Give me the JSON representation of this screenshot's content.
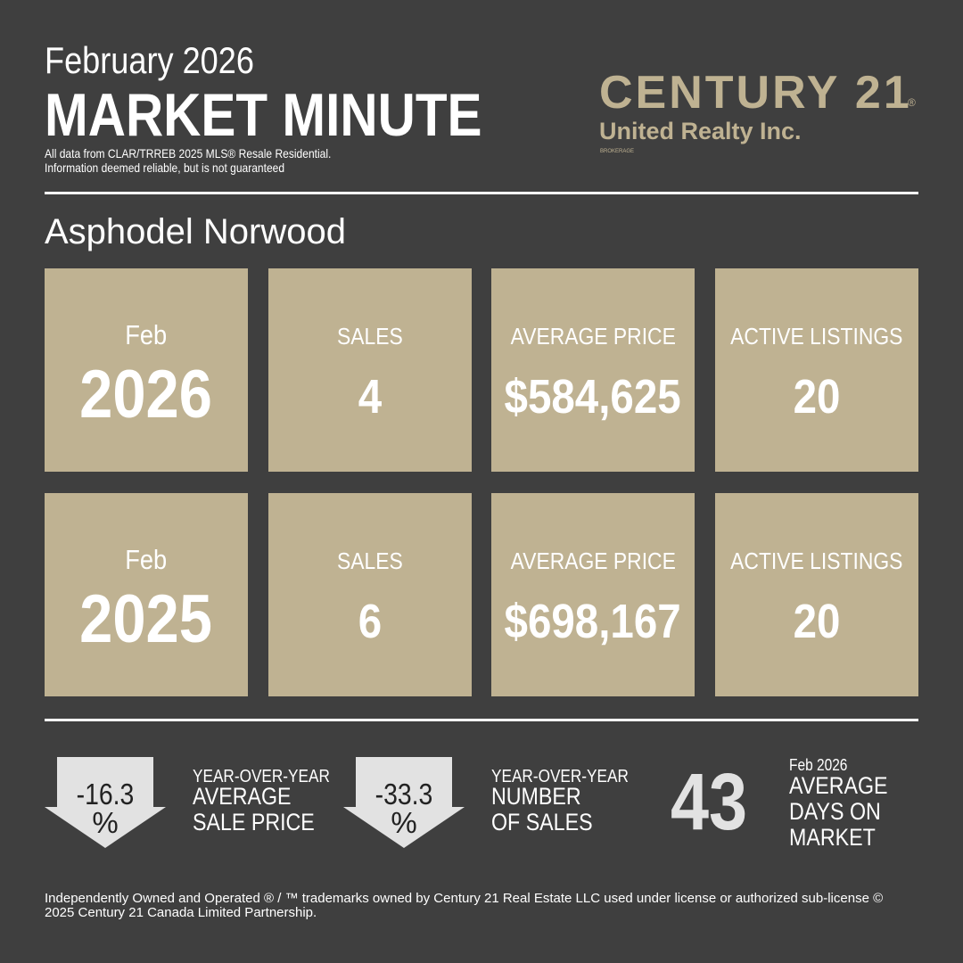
{
  "header": {
    "month_title": "February 2026",
    "title": "MARKET MINUTE",
    "note": [
      "All data from CLAR/TRREB 2025 MLS® Resale  Residential.",
      "Information deemed reliable, but is not guaranteed"
    ]
  },
  "logo": {
    "brand": "CENTURY 21",
    "mark": "®",
    "office": "United Realty Inc.",
    "tag": "BROKERAGE"
  },
  "region": "Asphodel Norwood",
  "rows": [
    {
      "month": "Feb",
      "year": "2026",
      "cards": [
        {
          "label": "SALES",
          "value": "4"
        },
        {
          "label": "AVERAGE PRICE",
          "value": "$584,625"
        },
        {
          "label": "ACTIVE LISTINGS",
          "value": "20"
        }
      ]
    },
    {
      "month": "Feb",
      "year": "2025",
      "cards": [
        {
          "label": "SALES",
          "value": "6"
        },
        {
          "label": "AVERAGE PRICE",
          "value": "$698,167"
        },
        {
          "label": "ACTIVE LISTINGS",
          "value": "20"
        }
      ]
    }
  ],
  "summary": [
    {
      "value": "-16.3",
      "unit": "%",
      "label": [
        "YEAR-OVER-YEAR",
        "AVERAGE",
        "SALE PRICE"
      ]
    },
    {
      "value": "-33.3",
      "unit": "%",
      "label": [
        "YEAR-OVER-YEAR",
        "NUMBER",
        "OF SALES"
      ]
    },
    {
      "value": "43",
      "period": "Feb 2026",
      "label": [
        "AVERAGE",
        "DAYS ON",
        "MARKET"
      ]
    }
  ],
  "footer": "Independently Owned and Operated ® / ™ trademarks owned by Century 21 Real Estate LLC used under license or authorized sub-license © 2025 Century 21 Canada Limited Partnership."
}
